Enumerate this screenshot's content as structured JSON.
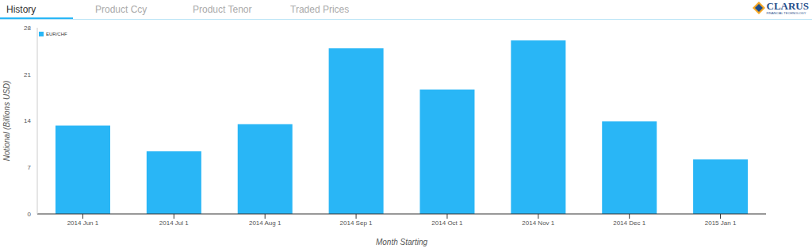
{
  "tabs": [
    "History",
    "Product Ccy",
    "Product Tenor",
    "Traded Prices"
  ],
  "logo": {
    "name": "CLARUS",
    "tagline": "FINANCIAL TECHNOLOGY"
  },
  "chart_data": {
    "type": "bar",
    "x_label": "Month Starting",
    "y_label": "Notional (Billions USD)",
    "categories": [
      "2014 Jun 1",
      "2014 Jul 1",
      "2014 Aug 1",
      "2014 Sep 1",
      "2014 Oct 1",
      "2014 Nov 1",
      "2014 Dec 1",
      "2015 Jan 1"
    ],
    "series": [
      {
        "name": "EUR/CHF",
        "color": "#29b6f6",
        "values": [
          13.3,
          9.4,
          13.5,
          24.9,
          18.7,
          26.1,
          13.9,
          8.2
        ]
      }
    ],
    "ylim": [
      0,
      28
    ],
    "yticks": [
      0,
      7,
      14,
      21,
      28
    ],
    "grid": false,
    "legend": "upper left"
  }
}
